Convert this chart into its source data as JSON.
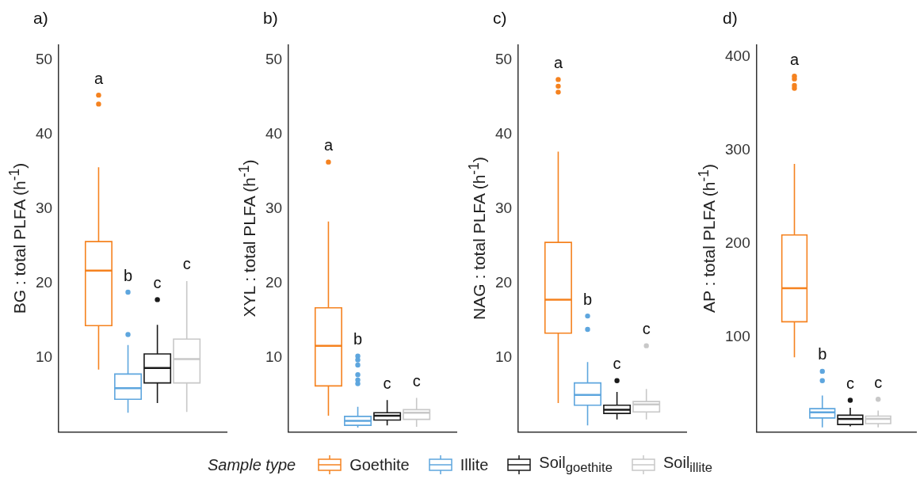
{
  "chart_data": [
    {
      "type": "box",
      "title": "a)",
      "ylabel": "BG : total PLFA (h$^{-1}$)",
      "categories": [
        null
      ],
      "ylim": [
        0,
        52
      ],
      "yticks": [
        10,
        20,
        30,
        40,
        50
      ],
      "tick_labels": "y",
      "legend": "bottom",
      "legend_title": "Sample type",
      "series": [
        {
          "name": "Goethite",
          "color": "#f5821f",
          "boxes": [
            {
              "low": 8.4,
              "q1": 14.3,
              "median": 21.7,
              "q3": 25.6,
              "high": 35.6,
              "outliers": [
                45.3,
                44.1
              ]
            }
          ]
        },
        {
          "name": "Illite",
          "color": "#5ea6de",
          "boxes": [
            {
              "low": 2.6,
              "q1": 4.4,
              "median": 5.9,
              "q3": 7.8,
              "high": 11.7,
              "outliers": [
                18.8,
                13.1
              ]
            }
          ]
        },
        {
          "name": "Soil$_{goethite}$",
          "color": "#1a1a1a",
          "boxes": [
            {
              "low": 3.9,
              "q1": 6.6,
              "median": 8.6,
              "q3": 10.5,
              "high": 14.4,
              "outliers": [
                17.8
              ]
            }
          ]
        },
        {
          "name": "Soil$_{illite}$",
          "color": "#c8c8c8",
          "boxes": [
            {
              "low": 2.7,
              "q1": 6.6,
              "median": 9.8,
              "q3": 12.5,
              "high": 20.3
            }
          ]
        }
      ],
      "annotations": [
        "a",
        "b",
        "c",
        "c"
      ]
    },
    {
      "type": "box",
      "title": "b)",
      "ylabel": "XYL : total PLFA (h$^{-1}$)",
      "categories": [
        null
      ],
      "ylim": [
        0,
        52
      ],
      "yticks": [
        10,
        20,
        30,
        40,
        50
      ],
      "tick_labels": "y",
      "series": [
        {
          "color": "#f5821f",
          "boxes": [
            {
              "low": 2.2,
              "q1": 6.2,
              "median": 11.6,
              "q3": 16.7,
              "high": 28.3,
              "outliers": [
                36.3
              ]
            }
          ]
        },
        {
          "color": "#5ea6de",
          "boxes": [
            {
              "low": 0.6,
              "q1": 0.9,
              "median": 1.5,
              "q3": 2.1,
              "high": 3.4,
              "outliers": [
                10.2,
                9.7,
                9.0,
                7.7,
                7.0,
                6.5
              ]
            }
          ]
        },
        {
          "color": "#1a1a1a",
          "boxes": [
            {
              "low": 0.9,
              "q1": 1.6,
              "median": 2.2,
              "q3": 2.6,
              "high": 4.3
            }
          ]
        },
        {
          "color": "#c8c8c8",
          "boxes": [
            {
              "low": 0.7,
              "q1": 1.7,
              "median": 2.6,
              "q3": 3.0,
              "high": 4.6
            }
          ]
        }
      ],
      "annotations": [
        "a",
        "b",
        "c",
        "c"
      ]
    },
    {
      "type": "box",
      "title": "c)",
      "ylabel": "NAG : total PLFA (h$^{-1}$)",
      "categories": [
        null
      ],
      "ylim": [
        0,
        52
      ],
      "yticks": [
        10,
        20,
        30,
        40,
        50
      ],
      "tick_labels": "y",
      "series": [
        {
          "color": "#f5821f",
          "boxes": [
            {
              "low": 3.9,
              "q1": 13.3,
              "median": 17.8,
              "q3": 25.5,
              "high": 37.7,
              "outliers": [
                47.4,
                46.5,
                45.7
              ]
            }
          ]
        },
        {
          "color": "#5ea6de",
          "boxes": [
            {
              "low": 0.9,
              "q1": 3.6,
              "median": 5.0,
              "q3": 6.6,
              "high": 9.4,
              "outliers": [
                15.6,
                13.8
              ]
            }
          ]
        },
        {
          "color": "#1a1a1a",
          "boxes": [
            {
              "low": 1.7,
              "q1": 2.5,
              "median": 3.0,
              "q3": 3.6,
              "high": 5.4,
              "outliers": [
                6.9
              ]
            }
          ]
        },
        {
          "color": "#c8c8c8",
          "boxes": [
            {
              "low": 1.7,
              "q1": 2.7,
              "median": 3.7,
              "q3": 4.1,
              "high": 5.8,
              "outliers": [
                11.6
              ]
            }
          ]
        }
      ],
      "annotations": [
        "a",
        "b",
        "c",
        "c"
      ]
    },
    {
      "type": "box",
      "title": "d)",
      "ylabel": "AP : total PLFA (h$^{-1}$)",
      "categories": [
        null
      ],
      "ylim": [
        -2,
        412
      ],
      "yticks": [
        100,
        200,
        300,
        400
      ],
      "tick_labels": "y",
      "series": [
        {
          "color": "#f5821f",
          "boxes": [
            {
              "low": 78,
              "q1": 116,
              "median": 152,
              "q3": 209,
              "high": 285,
              "outliers": [
                379,
                376,
                369,
                366
              ]
            }
          ]
        },
        {
          "color": "#5ea6de",
          "boxes": [
            {
              "low": 3,
              "q1": 13,
              "median": 19,
              "q3": 23,
              "high": 37,
              "outliers": [
                63,
                53
              ]
            }
          ]
        },
        {
          "color": "#1a1a1a",
          "boxes": [
            {
              "low": 4,
              "q1": 6,
              "median": 12,
              "q3": 16,
              "high": 24,
              "outliers": [
                32
              ]
            }
          ]
        },
        {
          "color": "#c8c8c8",
          "boxes": [
            {
              "low": 3,
              "q1": 7,
              "median": 12,
              "q3": 15,
              "high": 21,
              "outliers": [
                33
              ]
            }
          ]
        }
      ],
      "annotations": [
        "a",
        "b",
        "c",
        "c"
      ]
    }
  ]
}
